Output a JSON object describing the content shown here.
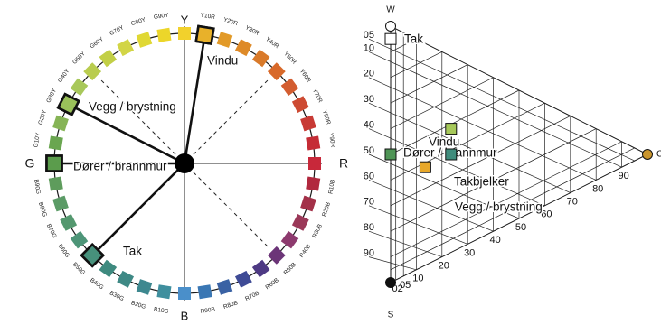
{
  "wheel": {
    "hues": [
      "Y",
      "Y10R",
      "Y20R",
      "Y30R",
      "Y40R",
      "Y50R",
      "Y60R",
      "Y70R",
      "Y80R",
      "Y90R",
      "R",
      "R10B",
      "R20B",
      "R30B",
      "R40B",
      "R50B",
      "R60B",
      "R70B",
      "R80B",
      "R90B",
      "B",
      "B10G",
      "B20G",
      "B30G",
      "B40G",
      "B50G",
      "B60G",
      "B70G",
      "B80G",
      "B90G",
      "G",
      "G10Y",
      "G20Y",
      "G30Y",
      "G40Y",
      "G50Y",
      "G60Y",
      "G70Y",
      "G80Y",
      "G90Y"
    ],
    "colors": [
      "#f2d12c",
      "#e8b12a",
      "#e29a28",
      "#de8a28",
      "#d97a2a",
      "#d8692a",
      "#d35d30",
      "#cd4a32",
      "#c83a35",
      "#c52d36",
      "#c8283a",
      "#b1283e",
      "#a33048",
      "#9a3858",
      "#8d3a6e",
      "#6c3578",
      "#4e3a84",
      "#3f4b96",
      "#3a62a4",
      "#3a77b4",
      "#4a8fca",
      "#3f8f9e",
      "#3d888f",
      "#3e8985",
      "#3e8a7f",
      "#47917c",
      "#4d9578",
      "#54986f",
      "#5b9b66",
      "#5e9c5c",
      "#5b9c4c",
      "#6aa650",
      "#86b456",
      "#9ac15a",
      "#a8c85a",
      "#b9cc4f",
      "#c2cf46",
      "#d2d546",
      "#e0d834",
      "#ecd62a"
    ],
    "highlighted": [
      "Y10R",
      "G30Y",
      "G",
      "B50G"
    ],
    "pole_labels": {
      "top": "Y",
      "right": "R",
      "bottom": "B",
      "left": "G"
    },
    "sample_labels": [
      {
        "hue": "Y10R",
        "text": "Vindu"
      },
      {
        "hue": "G30Y",
        "text": "Vegg / brystning"
      },
      {
        "hue": "G",
        "text": "Dører / brannmur"
      },
      {
        "hue": "B50G",
        "text": "Tak"
      }
    ]
  },
  "triangle": {
    "vertex_labels": {
      "white": "W",
      "black": "S",
      "chromatic": "C"
    },
    "blackness_scale": [
      "05",
      "10",
      "20",
      "30",
      "40",
      "50",
      "60",
      "70",
      "80",
      "90"
    ],
    "chromaticness_scale": [
      "02",
      "05",
      "10",
      "20",
      "30",
      "40",
      "50",
      "60",
      "70",
      "80",
      "90"
    ],
    "samples": [
      {
        "text": "Tak",
        "s": 5,
        "c": 0,
        "color": "#ffffff"
      },
      {
        "text": "Dører / brannmur",
        "s": 50,
        "c": 0,
        "color": "#4f9556"
      },
      {
        "text": "Vindu",
        "s": 50,
        "c": 10,
        "color": "#e8a82a"
      },
      {
        "text": "Takbjelker",
        "s": 40,
        "c": 20,
        "color": "#3f8c7c"
      },
      {
        "text": "Vegg / brystning",
        "s": 30,
        "c": 20,
        "color": "#a6c85a"
      }
    ]
  }
}
